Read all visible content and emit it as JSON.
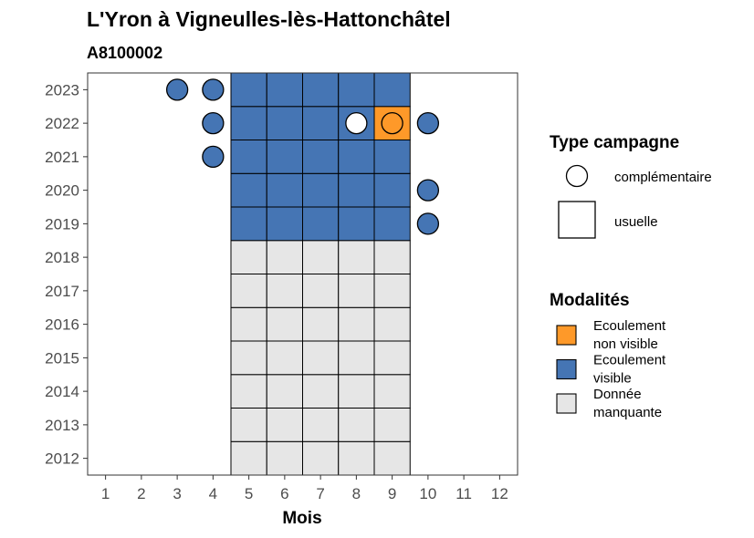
{
  "chart_data": {
    "type": "heatmap",
    "title": "L'Yron à Vigneulles-lès-Hattonchâtel",
    "subtitle": "A8100002",
    "xlabel": "Mois",
    "ylabel": "",
    "xlim": [
      0.5,
      12.5
    ],
    "ylim": [
      2011.5,
      2023.5
    ],
    "x_ticks": [
      "1",
      "2",
      "3",
      "4",
      "5",
      "6",
      "7",
      "8",
      "9",
      "10",
      "11",
      "12"
    ],
    "y_ticks": [
      "2012",
      "2013",
      "2014",
      "2015",
      "2016",
      "2017",
      "2018",
      "2019",
      "2020",
      "2021",
      "2022",
      "2023"
    ],
    "colors": {
      "Ecoulement non visible": "#FE9929",
      "Ecoulement visible": "#4575B4",
      "Donnée manquante": "#E6E6E6",
      "none": "#FFFFFF"
    },
    "usuelle": [
      {
        "year": 2012,
        "months": [
          5,
          6,
          7,
          8,
          9
        ],
        "values": [
          "Donnée manquante",
          "Donnée manquante",
          "Donnée manquante",
          "Donnée manquante",
          "Donnée manquante"
        ]
      },
      {
        "year": 2013,
        "months": [
          5,
          6,
          7,
          8,
          9
        ],
        "values": [
          "Donnée manquante",
          "Donnée manquante",
          "Donnée manquante",
          "Donnée manquante",
          "Donnée manquante"
        ]
      },
      {
        "year": 2014,
        "months": [
          5,
          6,
          7,
          8,
          9
        ],
        "values": [
          "Donnée manquante",
          "Donnée manquante",
          "Donnée manquante",
          "Donnée manquante",
          "Donnée manquante"
        ]
      },
      {
        "year": 2015,
        "months": [
          5,
          6,
          7,
          8,
          9
        ],
        "values": [
          "Donnée manquante",
          "Donnée manquante",
          "Donnée manquante",
          "Donnée manquante",
          "Donnée manquante"
        ]
      },
      {
        "year": 2016,
        "months": [
          5,
          6,
          7,
          8,
          9
        ],
        "values": [
          "Donnée manquante",
          "Donnée manquante",
          "Donnée manquante",
          "Donnée manquante",
          "Donnée manquante"
        ]
      },
      {
        "year": 2017,
        "months": [
          5,
          6,
          7,
          8,
          9
        ],
        "values": [
          "Donnée manquante",
          "Donnée manquante",
          "Donnée manquante",
          "Donnée manquante",
          "Donnée manquante"
        ]
      },
      {
        "year": 2018,
        "months": [
          5,
          6,
          7,
          8,
          9
        ],
        "values": [
          "Donnée manquante",
          "Donnée manquante",
          "Donnée manquante",
          "Donnée manquante",
          "Donnée manquante"
        ]
      },
      {
        "year": 2019,
        "months": [
          5,
          6,
          7,
          8,
          9
        ],
        "values": [
          "Ecoulement visible",
          "Ecoulement visible",
          "Ecoulement visible",
          "Ecoulement visible",
          "Ecoulement visible"
        ]
      },
      {
        "year": 2020,
        "months": [
          5,
          6,
          7,
          8,
          9
        ],
        "values": [
          "Ecoulement visible",
          "Ecoulement visible",
          "Ecoulement visible",
          "Ecoulement visible",
          "Ecoulement visible"
        ]
      },
      {
        "year": 2021,
        "months": [
          5,
          6,
          7,
          8,
          9
        ],
        "values": [
          "Ecoulement visible",
          "Ecoulement visible",
          "Ecoulement visible",
          "Ecoulement visible",
          "Ecoulement visible"
        ]
      },
      {
        "year": 2022,
        "months": [
          5,
          6,
          7,
          8,
          9
        ],
        "values": [
          "Ecoulement visible",
          "Ecoulement visible",
          "Ecoulement visible",
          "Ecoulement visible",
          "Ecoulement non visible"
        ]
      },
      {
        "year": 2023,
        "months": [
          5,
          6,
          7,
          8,
          9
        ],
        "values": [
          "Ecoulement visible",
          "Ecoulement visible",
          "Ecoulement visible",
          "Ecoulement visible",
          "Ecoulement visible"
        ]
      }
    ],
    "complementaire": [
      {
        "year": 2023,
        "month": 3,
        "value": "Ecoulement visible"
      },
      {
        "year": 2023,
        "month": 4,
        "value": "Ecoulement visible"
      },
      {
        "year": 2022,
        "month": 4,
        "value": "Ecoulement visible"
      },
      {
        "year": 2022,
        "month": 8,
        "value": "none"
      },
      {
        "year": 2022,
        "month": 9,
        "value": "Ecoulement non visible"
      },
      {
        "year": 2022,
        "month": 10,
        "value": "Ecoulement visible"
      },
      {
        "year": 2021,
        "month": 4,
        "value": "Ecoulement visible"
      },
      {
        "year": 2020,
        "month": 10,
        "value": "Ecoulement visible"
      },
      {
        "year": 2019,
        "month": 10,
        "value": "Ecoulement visible"
      }
    ],
    "legend_type": {
      "title": "Type campagne",
      "items": [
        {
          "label": "complémentaire",
          "shape": "circle"
        },
        {
          "label": "usuelle",
          "shape": "square"
        }
      ]
    },
    "legend_modalites": {
      "title": "Modalités",
      "items": [
        {
          "lines": [
            "Ecoulement",
            "non visible"
          ],
          "key": "Ecoulement non visible"
        },
        {
          "lines": [
            "Ecoulement",
            "visible"
          ],
          "key": "Ecoulement visible"
        },
        {
          "lines": [
            "Donnée",
            "manquante"
          ],
          "key": "Donnée manquante"
        }
      ]
    },
    "legend_placement": "right",
    "grid": false
  }
}
